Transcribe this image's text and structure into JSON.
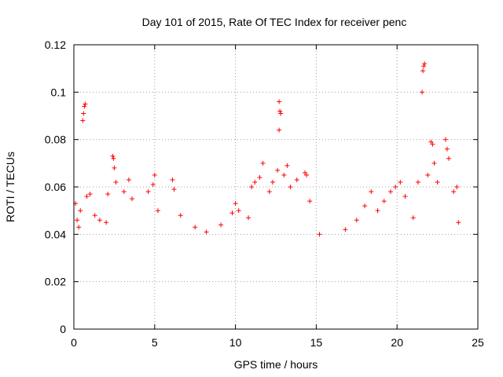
{
  "chart_data": {
    "type": "scatter",
    "title": "Day 101 of 2015, Rate Of TEC Index for receiver penc",
    "xlabel": "GPS time / hours",
    "ylabel": "ROTI / TECUs",
    "xlim": [
      0,
      25
    ],
    "ylim": [
      0,
      0.12
    ],
    "xticks": [
      0,
      5,
      10,
      15,
      20,
      25
    ],
    "yticks": [
      0,
      0.02,
      0.04,
      0.06,
      0.08,
      0.1,
      0.12
    ],
    "xtick_labels": [
      "0",
      "5",
      "10",
      "15",
      "20",
      "25"
    ],
    "ytick_labels": [
      "0",
      "0.02",
      "0.04",
      "0.06",
      "0.08",
      "0.1",
      "0.12"
    ],
    "grid": true,
    "marker": "plus",
    "color": "#ff0000",
    "series": [
      {
        "name": "",
        "points": [
          [
            0.1,
            0.053
          ],
          [
            0.2,
            0.046
          ],
          [
            0.3,
            0.043
          ],
          [
            0.4,
            0.05
          ],
          [
            0.55,
            0.088
          ],
          [
            0.6,
            0.091
          ],
          [
            0.65,
            0.094
          ],
          [
            0.7,
            0.095
          ],
          [
            0.8,
            0.056
          ],
          [
            1.0,
            0.057
          ],
          [
            1.3,
            0.048
          ],
          [
            1.6,
            0.046
          ],
          [
            2.0,
            0.045
          ],
          [
            2.1,
            0.057
          ],
          [
            2.4,
            0.073
          ],
          [
            2.45,
            0.072
          ],
          [
            2.5,
            0.068
          ],
          [
            2.6,
            0.062
          ],
          [
            3.1,
            0.058
          ],
          [
            3.4,
            0.063
          ],
          [
            3.6,
            0.055
          ],
          [
            4.6,
            0.058
          ],
          [
            4.9,
            0.061
          ],
          [
            5.0,
            0.065
          ],
          [
            5.2,
            0.05
          ],
          [
            6.1,
            0.063
          ],
          [
            6.2,
            0.059
          ],
          [
            6.6,
            0.048
          ],
          [
            7.5,
            0.043
          ],
          [
            8.2,
            0.041
          ],
          [
            9.1,
            0.044
          ],
          [
            9.8,
            0.049
          ],
          [
            10.0,
            0.053
          ],
          [
            10.2,
            0.05
          ],
          [
            10.8,
            0.047
          ],
          [
            11.0,
            0.06
          ],
          [
            11.2,
            0.062
          ],
          [
            11.5,
            0.064
          ],
          [
            11.7,
            0.07
          ],
          [
            12.1,
            0.058
          ],
          [
            12.3,
            0.062
          ],
          [
            12.6,
            0.067
          ],
          [
            12.7,
            0.096
          ],
          [
            12.75,
            0.092
          ],
          [
            12.8,
            0.091
          ],
          [
            12.7,
            0.084
          ],
          [
            13.0,
            0.065
          ],
          [
            13.2,
            0.069
          ],
          [
            13.4,
            0.06
          ],
          [
            13.8,
            0.063
          ],
          [
            14.3,
            0.066
          ],
          [
            14.4,
            0.065
          ],
          [
            14.6,
            0.054
          ],
          [
            15.2,
            0.04
          ],
          [
            16.8,
            0.042
          ],
          [
            17.5,
            0.046
          ],
          [
            18.0,
            0.052
          ],
          [
            18.4,
            0.058
          ],
          [
            18.8,
            0.05
          ],
          [
            19.2,
            0.054
          ],
          [
            19.6,
            0.058
          ],
          [
            19.9,
            0.06
          ],
          [
            20.2,
            0.062
          ],
          [
            20.5,
            0.056
          ],
          [
            21.0,
            0.047
          ],
          [
            21.3,
            0.062
          ],
          [
            21.55,
            0.1
          ],
          [
            21.6,
            0.109
          ],
          [
            21.65,
            0.111
          ],
          [
            21.7,
            0.112
          ],
          [
            21.9,
            0.065
          ],
          [
            22.1,
            0.079
          ],
          [
            22.2,
            0.078
          ],
          [
            22.3,
            0.07
          ],
          [
            22.5,
            0.062
          ],
          [
            23.0,
            0.08
          ],
          [
            23.1,
            0.076
          ],
          [
            23.2,
            0.072
          ],
          [
            23.5,
            0.058
          ],
          [
            23.7,
            0.06
          ],
          [
            23.8,
            0.045
          ]
        ]
      }
    ]
  }
}
